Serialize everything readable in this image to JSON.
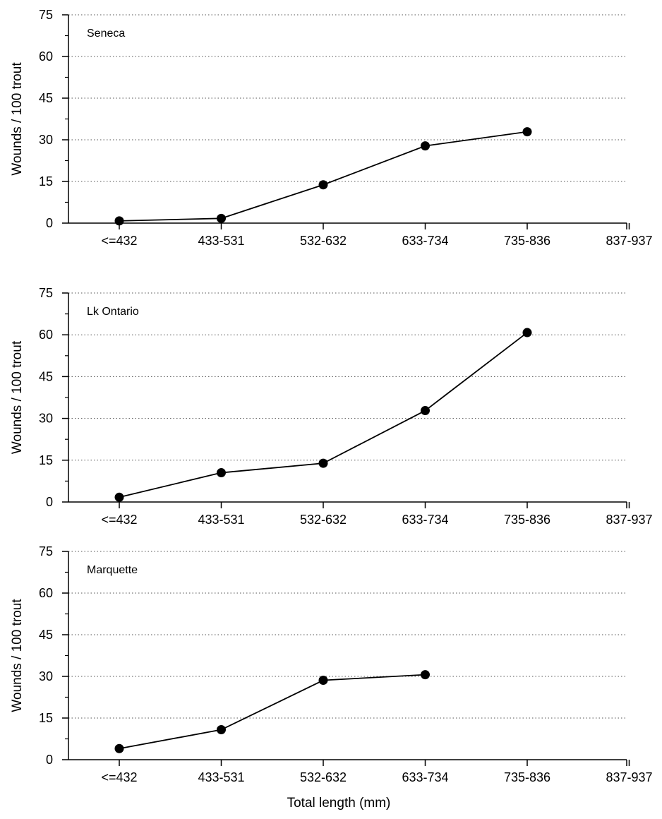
{
  "chart_data": {
    "type": "line",
    "xlabel": "Total length (mm)",
    "ylabel": "Wounds / 100 trout",
    "categories": [
      "<=432",
      "433-531",
      "532-632",
      "633-734",
      "735-836",
      "837-937"
    ],
    "ylim": [
      0,
      75
    ],
    "yticks": [
      0,
      15,
      30,
      45,
      60,
      75
    ],
    "grid": "horizontal dotted",
    "panels": [
      {
        "label": "Seneca",
        "values": [
          0.8,
          1.7,
          13.8,
          27.8,
          32.9,
          null
        ]
      },
      {
        "label": "Lk Ontario",
        "values": [
          1.7,
          10.5,
          13.9,
          32.8,
          60.8,
          null
        ]
      },
      {
        "label": "Marquette",
        "values": [
          4.0,
          10.8,
          28.6,
          30.6,
          null,
          null
        ]
      }
    ]
  },
  "colors": {
    "line": "#000000",
    "marker": "#000000",
    "grid": "#555555"
  }
}
